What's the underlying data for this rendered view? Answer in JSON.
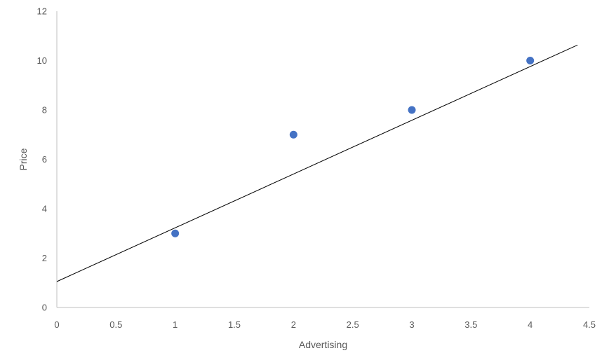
{
  "chart_data": {
    "type": "scatter",
    "title": "",
    "xlabel": "Advertising",
    "ylabel": "Price",
    "xlim": [
      0,
      4.5
    ],
    "ylim": [
      0,
      12
    ],
    "x_ticks": [
      "0",
      "0.5",
      "1",
      "1.5",
      "2",
      "2.5",
      "3",
      "3.5",
      "4",
      "4.5"
    ],
    "y_ticks": [
      "0",
      "2",
      "4",
      "6",
      "8",
      "10",
      "12"
    ],
    "grid": false,
    "legend": "none",
    "series": [
      {
        "x": [
          1,
          2,
          3,
          4
        ],
        "y": [
          3,
          7,
          8,
          10
        ],
        "color": "#4472C4"
      }
    ],
    "trendline": {
      "type": "linear",
      "color": "#000000",
      "x": [
        0,
        4.4
      ],
      "y": [
        1.05,
        10.63
      ]
    }
  }
}
